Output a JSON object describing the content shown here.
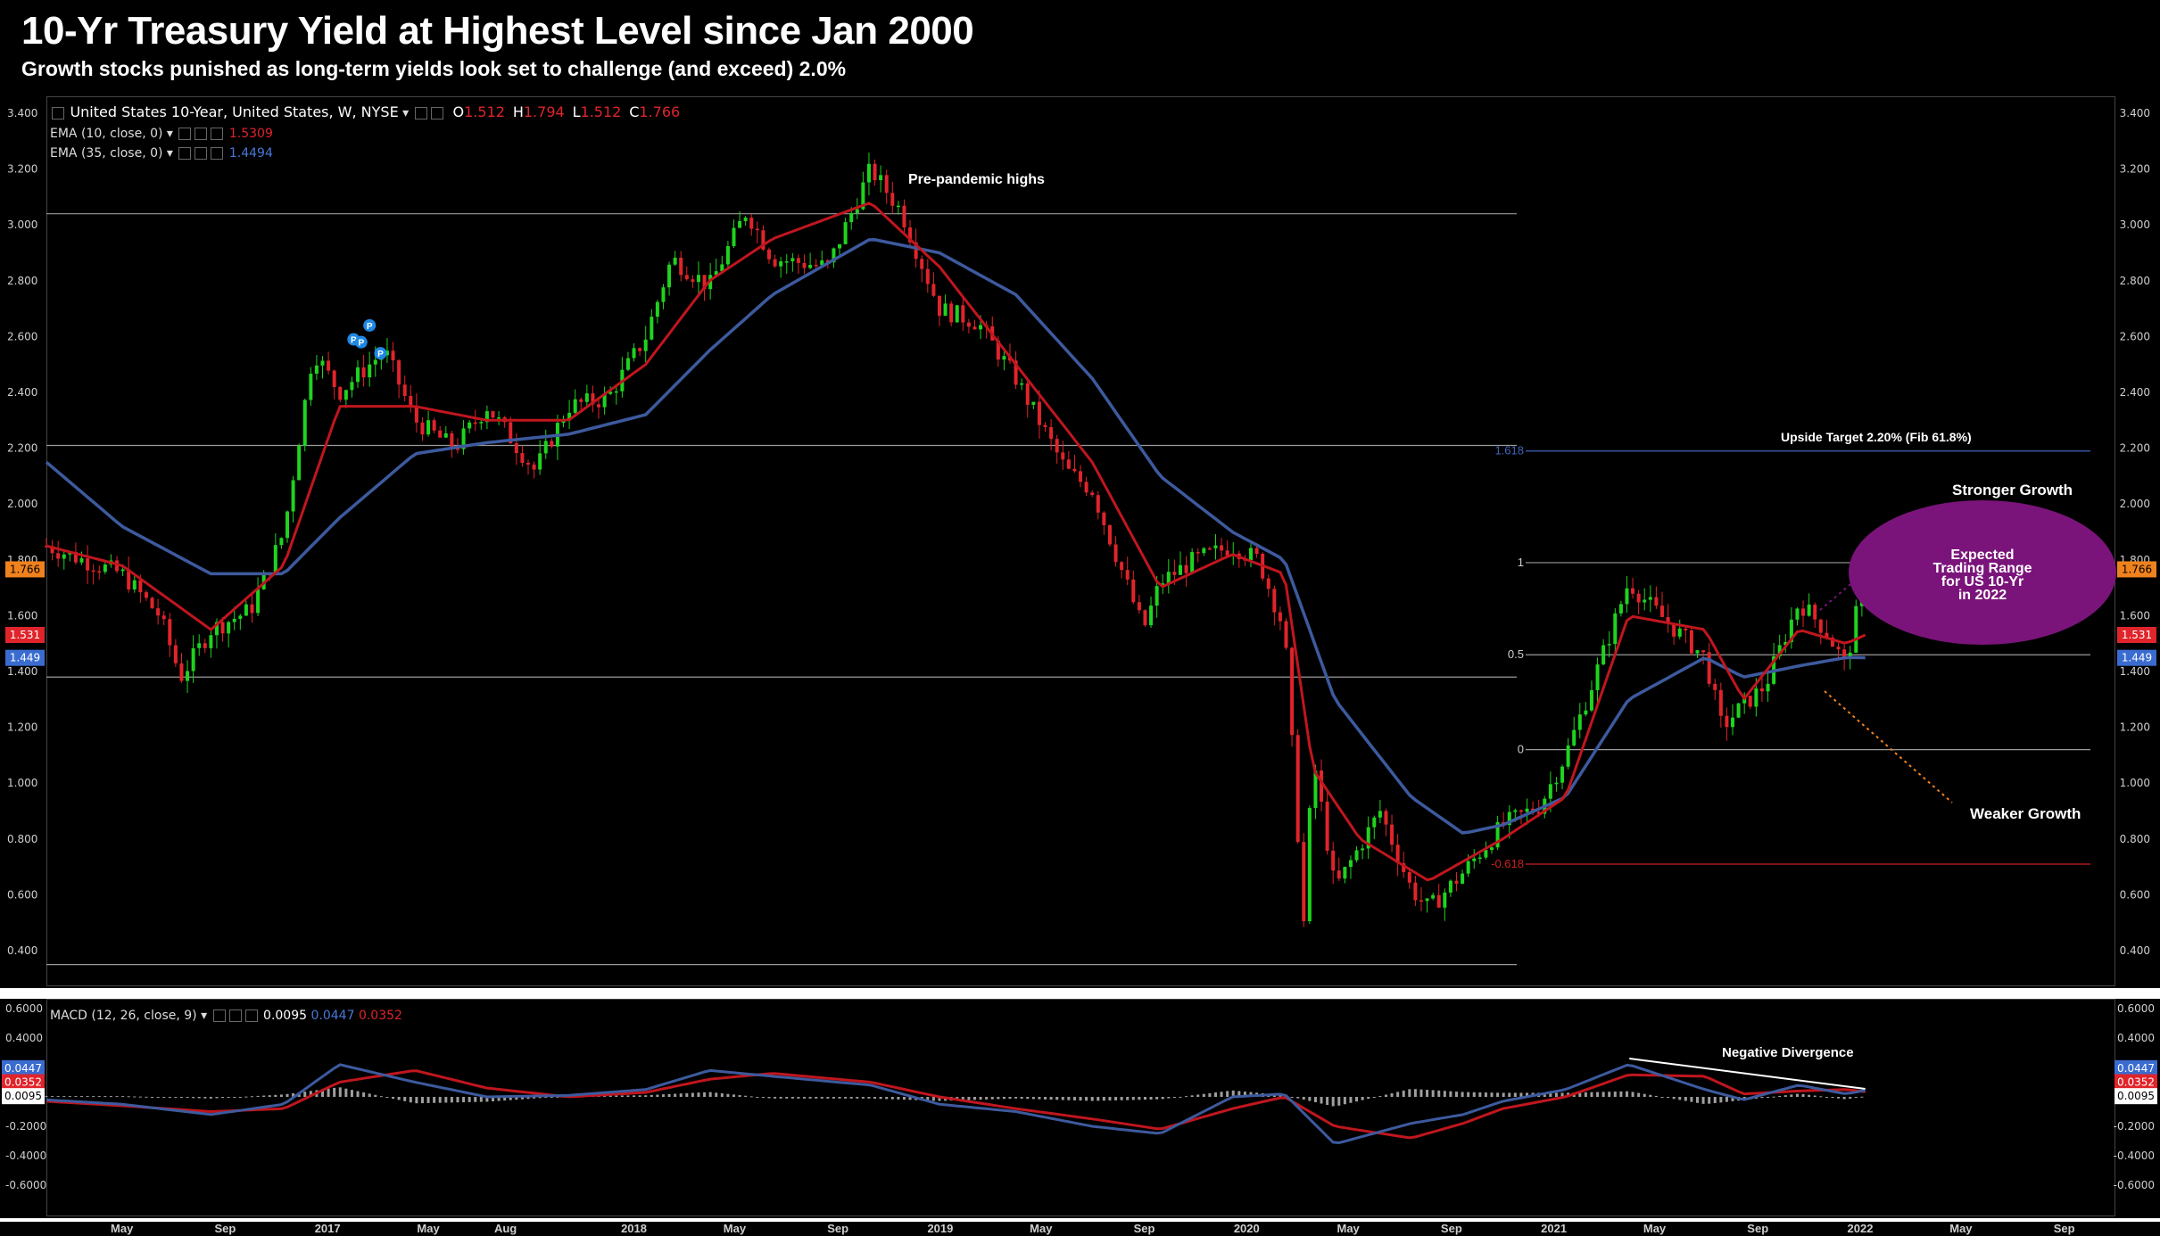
{
  "header": {
    "title": "10-Yr Treasury Yield at Highest Level since Jan 2000",
    "subtitle": "Growth stocks punished as long-term yields look set to challenge (and exceed) 2.0%"
  },
  "legend": {
    "symbol": "United States 10-Year, United States, W, NYSE",
    "open_label": "O",
    "open": "1.512",
    "high_label": "H",
    "high": "1.794",
    "low_label": "L",
    "low": "1.512",
    "close_label": "C",
    "close": "1.766",
    "ema10_label": "EMA (10, close, 0)",
    "ema10_value": "1.5309",
    "ema35_label": "EMA (35, close, 0)",
    "ema35_value": "1.4494",
    "macd_label": "MACD (12, 26, close, 9)",
    "macd_hist": "0.0095",
    "macd_line": "0.0447",
    "macd_signal": "0.0352"
  },
  "colors": {
    "up": "#1fd31f",
    "down": "#e0242b",
    "ema10": "#c0161e",
    "ema35": "#3d5a9e",
    "fib_blue": "#3f63b8",
    "fib_red": "#cc1f1f",
    "ellipse": "#7a147a",
    "orange": "#f0821e"
  },
  "badges": {
    "close": "1.766",
    "ema10": "1.531",
    "ema35": "1.449",
    "macd_line": "0.0447",
    "macd_signal": "0.0352",
    "macd_hist": "0.0095"
  },
  "annotations": {
    "pre_pandemic": "Pre-pandemic highs",
    "upside_target": "Upside Target 2.20% (Fib 61.8%)",
    "stronger": "Stronger Growth",
    "weaker": "Weaker Growth",
    "ellipse_lines": [
      "Expected",
      "Trading Range",
      "for US 10-Yr",
      "in 2022"
    ],
    "negative_divergence": "Negative Divergence",
    "pivot_marker": "P"
  },
  "chart_data": [
    {
      "type": "candlestick",
      "ylim": [
        0.3,
        3.45
      ],
      "ytick_labels": [
        "3.400",
        "3.200",
        "3.000",
        "2.800",
        "2.600",
        "2.400",
        "2.200",
        "2.000",
        "1.800",
        "1.600",
        "1.400",
        "1.200",
        "1.000",
        "0.800",
        "0.600",
        "0.400"
      ],
      "xtick_labels": [
        "May",
        "Sep",
        "2017",
        "May",
        "Aug",
        "2018",
        "May",
        "Sep",
        "2019",
        "May",
        "Sep",
        "2020",
        "May",
        "Sep",
        "2021",
        "May",
        "Sep",
        "2022",
        "May",
        "Sep"
      ],
      "xtick_dates": [
        "2016-05-01",
        "2016-09-01",
        "2017-01-01",
        "2017-05-01",
        "2017-08-01",
        "2018-01-01",
        "2018-05-01",
        "2018-09-01",
        "2019-01-01",
        "2019-05-01",
        "2019-09-01",
        "2020-01-01",
        "2020-05-01",
        "2020-09-01",
        "2021-01-01",
        "2021-05-01",
        "2021-09-01",
        "2022-01-01",
        "2022-05-01",
        "2022-09-01"
      ],
      "x_range": [
        "2016-02-01",
        "2022-11-01"
      ],
      "close_series": {
        "dates": [
          "2016-02-01",
          "2016-03-15",
          "2016-05-01",
          "2016-06-15",
          "2016-07-10",
          "2016-08-15",
          "2016-10-01",
          "2016-11-10",
          "2016-12-15",
          "2017-01-15",
          "2017-03-10",
          "2017-04-15",
          "2017-06-01",
          "2017-07-10",
          "2017-09-05",
          "2017-10-15",
          "2017-12-01",
          "2018-01-15",
          "2018-02-15",
          "2018-04-01",
          "2018-05-15",
          "2018-06-15",
          "2018-08-20",
          "2018-10-10",
          "2018-11-15",
          "2018-12-31",
          "2019-02-15",
          "2019-04-01",
          "2019-05-31",
          "2019-07-01",
          "2019-08-31",
          "2019-09-20",
          "2019-10-31",
          "2019-12-15",
          "2020-01-15",
          "2020-02-15",
          "2020-03-09",
          "2020-03-20",
          "2020-04-15",
          "2020-06-08",
          "2020-07-15",
          "2020-08-05",
          "2020-09-15",
          "2020-11-01",
          "2020-12-15",
          "2021-01-15",
          "2021-02-15",
          "2021-03-31",
          "2021-05-01",
          "2021-06-30",
          "2021-07-20",
          "2021-08-15",
          "2021-09-10",
          "2021-10-20",
          "2021-11-20",
          "2021-12-15",
          "2022-01-07"
        ],
        "values": [
          1.85,
          1.8,
          1.75,
          1.6,
          1.38,
          1.55,
          1.62,
          1.9,
          2.55,
          2.4,
          2.55,
          2.3,
          2.2,
          2.35,
          2.12,
          2.35,
          2.38,
          2.6,
          2.88,
          2.78,
          3.05,
          2.88,
          2.85,
          3.2,
          3.05,
          2.7,
          2.65,
          2.45,
          2.12,
          2.05,
          1.55,
          1.72,
          1.8,
          1.85,
          1.8,
          1.55,
          0.5,
          1.1,
          0.62,
          0.9,
          0.62,
          0.55,
          0.68,
          0.85,
          0.92,
          1.1,
          1.35,
          1.72,
          1.62,
          1.45,
          1.2,
          1.28,
          1.35,
          1.65,
          1.55,
          1.42,
          1.766
        ]
      },
      "ema10": {
        "dates": [
          "2016-02-01",
          "2016-05-01",
          "2016-08-15",
          "2016-11-10",
          "2017-01-15",
          "2017-04-15",
          "2017-07-10",
          "2017-10-15",
          "2018-01-15",
          "2018-04-01",
          "2018-06-15",
          "2018-10-10",
          "2018-12-31",
          "2019-04-01",
          "2019-07-01",
          "2019-09-20",
          "2019-12-15",
          "2020-02-15",
          "2020-03-20",
          "2020-05-15",
          "2020-08-05",
          "2020-11-01",
          "2021-01-15",
          "2021-03-31",
          "2021-06-30",
          "2021-08-15",
          "2021-10-20",
          "2021-12-15",
          "2022-01-07"
        ],
        "values": [
          1.85,
          1.78,
          1.55,
          1.78,
          2.35,
          2.35,
          2.3,
          2.3,
          2.5,
          2.8,
          2.95,
          3.08,
          2.85,
          2.5,
          2.15,
          1.7,
          1.82,
          1.75,
          1.05,
          0.8,
          0.65,
          0.8,
          0.95,
          1.6,
          1.55,
          1.3,
          1.55,
          1.5,
          1.5309
        ]
      },
      "ema35": {
        "dates": [
          "2016-02-01",
          "2016-05-01",
          "2016-08-15",
          "2016-11-10",
          "2017-01-15",
          "2017-04-15",
          "2017-07-10",
          "2017-10-15",
          "2018-01-15",
          "2018-04-01",
          "2018-06-15",
          "2018-10-10",
          "2018-12-31",
          "2019-04-01",
          "2019-07-01",
          "2019-09-20",
          "2019-12-15",
          "2020-02-15",
          "2020-04-15",
          "2020-07-15",
          "2020-09-15",
          "2020-11-01",
          "2021-01-15",
          "2021-03-31",
          "2021-06-30",
          "2021-08-15",
          "2021-10-20",
          "2021-12-15",
          "2022-01-07"
        ],
        "values": [
          2.15,
          1.92,
          1.75,
          1.75,
          1.95,
          2.18,
          2.22,
          2.25,
          2.32,
          2.55,
          2.75,
          2.95,
          2.9,
          2.75,
          2.45,
          2.1,
          1.9,
          1.8,
          1.3,
          0.95,
          0.82,
          0.85,
          0.95,
          1.3,
          1.45,
          1.38,
          1.42,
          1.45,
          1.4494
        ]
      },
      "horizontal_levels": [
        {
          "name": "pre-pandemic-high",
          "value": 3.04
        },
        {
          "name": "resistance-2.21",
          "value": 2.21
        },
        {
          "name": "support-1.38",
          "value": 1.38
        },
        {
          "name": "bottom-0.35",
          "value": 0.35
        }
      ],
      "fibonacci": [
        {
          "label": "1.618",
          "value": 2.19
        },
        {
          "label": "1",
          "value": 1.79
        },
        {
          "label": "0.5",
          "value": 1.46
        },
        {
          "label": "0",
          "value": 1.12
        },
        {
          "label": "-0.618",
          "value": 0.71
        }
      ]
    },
    {
      "type": "macd",
      "ylim": [
        -0.8,
        0.8
      ],
      "ytick_labels": [
        "0.6000",
        "0.4000",
        "0.2000",
        "0.0000",
        "-0.2000",
        "-0.4000",
        "-0.6000"
      ],
      "macd_line": {
        "dates": [
          "2016-02-01",
          "2016-05-01",
          "2016-08-15",
          "2016-11-10",
          "2017-01-15",
          "2017-04-15",
          "2017-07-10",
          "2017-10-15",
          "2018-01-15",
          "2018-04-01",
          "2018-06-15",
          "2018-10-10",
          "2018-12-31",
          "2019-04-01",
          "2019-07-01",
          "2019-09-20",
          "2019-12-15",
          "2020-02-15",
          "2020-04-15",
          "2020-07-15",
          "2020-09-15",
          "2020-11-01",
          "2021-01-15",
          "2021-03-31",
          "2021-06-30",
          "2021-08-15",
          "2021-10-20",
          "2021-12-15",
          "2022-01-07"
        ],
        "values": [
          -0.02,
          -0.05,
          -0.12,
          -0.05,
          0.22,
          0.1,
          0.0,
          0.01,
          0.05,
          0.18,
          0.14,
          0.08,
          -0.05,
          -0.1,
          -0.2,
          -0.25,
          0.0,
          0.02,
          -0.32,
          -0.18,
          -0.12,
          -0.03,
          0.05,
          0.22,
          0.05,
          -0.02,
          0.08,
          0.02,
          0.0447
        ]
      },
      "signal_line": {
        "dates": [
          "2016-02-01",
          "2016-05-01",
          "2016-08-15",
          "2016-11-10",
          "2017-01-15",
          "2017-04-15",
          "2017-07-10",
          "2017-10-15",
          "2018-01-15",
          "2018-04-01",
          "2018-06-15",
          "2018-10-10",
          "2018-12-31",
          "2019-04-01",
          "2019-07-01",
          "2019-09-20",
          "2019-12-15",
          "2020-02-15",
          "2020-04-15",
          "2020-07-15",
          "2020-09-15",
          "2020-11-01",
          "2021-01-15",
          "2021-03-31",
          "2021-06-30",
          "2021-08-15",
          "2021-10-20",
          "2021-12-15",
          "2022-01-07"
        ],
        "values": [
          -0.03,
          -0.06,
          -0.1,
          -0.08,
          0.1,
          0.18,
          0.06,
          0.0,
          0.03,
          0.12,
          0.16,
          0.1,
          0.0,
          -0.08,
          -0.15,
          -0.22,
          -0.08,
          0.0,
          -0.2,
          -0.28,
          -0.18,
          -0.08,
          0.0,
          0.15,
          0.14,
          0.02,
          0.04,
          0.05,
          0.0352
        ]
      }
    }
  ]
}
